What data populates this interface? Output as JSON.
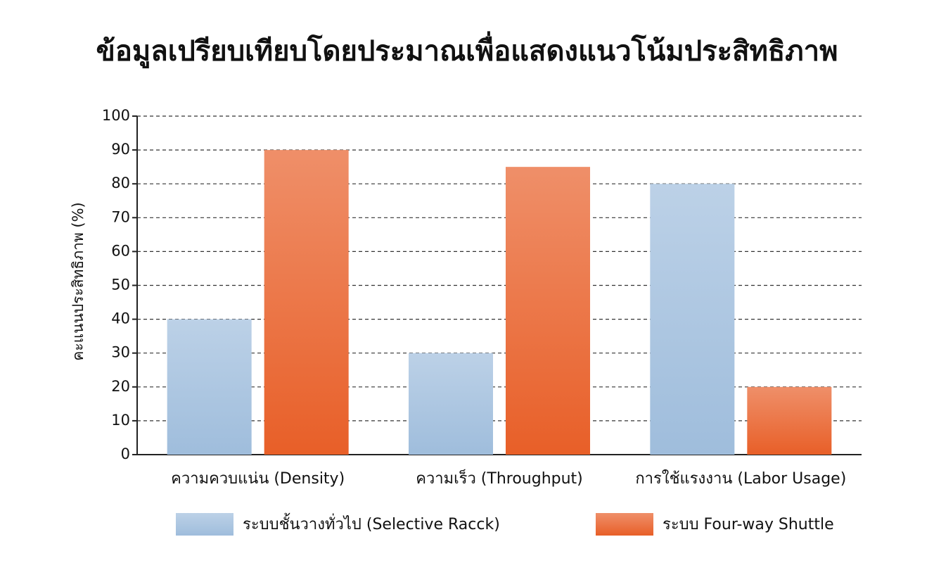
{
  "chart_data": {
    "type": "bar",
    "title": "ข้อมูลเปรียบเทียบโดยประมาณเพื่อแสดงแนวโน้มประสิทธิภาพ",
    "y_label": "คะแนนประสิทธิภาพ (%)",
    "categories": [
      "ความควบแน่น (Density)",
      "ความเร็ว (Throughput)",
      "การใช้แรงงาน (Labor Usage)"
    ],
    "series": [
      {
        "name": "ระบบชั้นวางทั่วไป (Selective Racck)",
        "color": "#9fbddc",
        "values": [
          40,
          30,
          80
        ]
      },
      {
        "name": "ระบบ Four-way Shuttle",
        "color": "#e85f28",
        "values": [
          90,
          85,
          20
        ]
      }
    ],
    "ylim": [
      0,
      100
    ],
    "yticks": [
      0,
      10,
      20,
      30,
      40,
      50,
      60,
      70,
      80,
      90,
      100
    ],
    "grid": true
  }
}
